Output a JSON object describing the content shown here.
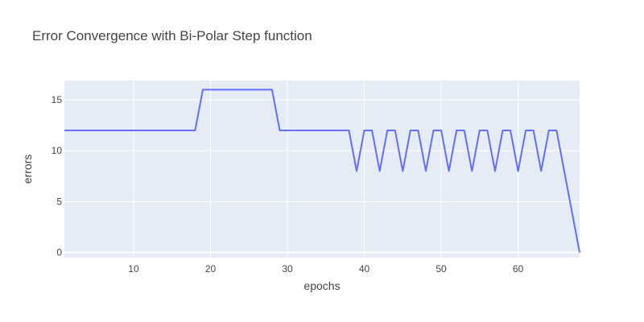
{
  "chart_data": {
    "type": "line",
    "title": "Error Convergence with Bi-Polar Step function",
    "xlabel": "epochs",
    "ylabel": "errors",
    "xlim": [
      1,
      68
    ],
    "ylim": [
      -0.5,
      16.9
    ],
    "x_ticks": [
      10,
      20,
      30,
      40,
      50,
      60
    ],
    "y_ticks": [
      0,
      5,
      10,
      15
    ],
    "grid": true,
    "legend": "none",
    "colors": {
      "line": "#636efa",
      "plot_bg": "#e5ecf6",
      "grid": "#ffffff",
      "text": "#444444"
    },
    "series": [
      {
        "x": [
          1,
          2,
          3,
          4,
          5,
          6,
          7,
          8,
          9,
          10,
          11,
          12,
          13,
          14,
          15,
          16,
          17,
          18,
          19,
          20,
          21,
          22,
          23,
          24,
          25,
          26,
          27,
          28,
          29,
          30,
          31,
          32,
          33,
          34,
          35,
          36,
          37,
          38,
          39,
          40,
          41,
          42,
          43,
          44,
          45,
          46,
          47,
          48,
          49,
          50,
          51,
          52,
          53,
          54,
          55,
          56,
          57,
          58,
          59,
          60,
          61,
          62,
          63,
          64,
          65,
          66,
          67,
          68
        ],
        "values": [
          12,
          12,
          12,
          12,
          12,
          12,
          12,
          12,
          12,
          12,
          12,
          12,
          12,
          12,
          12,
          12,
          12,
          12,
          16,
          16,
          16,
          16,
          16,
          16,
          16,
          16,
          16,
          16,
          12,
          12,
          12,
          12,
          12,
          12,
          12,
          12,
          12,
          12,
          8,
          12,
          12,
          8,
          12,
          12,
          8,
          12,
          12,
          8,
          12,
          12,
          8,
          12,
          12,
          8,
          12,
          12,
          8,
          12,
          12,
          8,
          12,
          12,
          8,
          12,
          12,
          8,
          4,
          0
        ]
      }
    ]
  }
}
